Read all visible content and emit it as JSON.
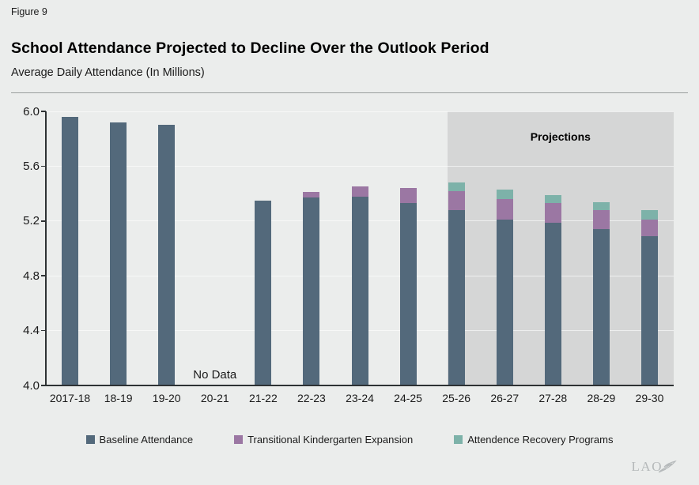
{
  "figure_label": "Figure 9",
  "title": "School Attendance Projected to Decline Over the Outlook Period",
  "subtitle": "Average Daily Attendance (In Millions)",
  "chart_data": {
    "type": "bar",
    "stacked": true,
    "title": "School Attendance Projected to Decline Over the Outlook Period",
    "subtitle": "Average Daily Attendance (In Millions)",
    "ylabel": "Average Daily Attendance (In Millions)",
    "xlabel": "",
    "ylim": [
      4.0,
      6.0
    ],
    "ytick_step": 0.4,
    "ytick_labels": [
      "6.0",
      "5.6",
      "5.2",
      "4.8",
      "4.4",
      "4.0"
    ],
    "grid": true,
    "legend_position": "bottom",
    "categories": [
      "2017-18",
      "18-19",
      "19-20",
      "20-21",
      "21-22",
      "22-23",
      "23-24",
      "24-25",
      "25-26",
      "26-27",
      "27-28",
      "28-29",
      "29-30"
    ],
    "series": [
      {
        "name": "Baseline Attendance",
        "color": "#53697b",
        "values": [
          5.96,
          5.92,
          5.9,
          null,
          5.35,
          5.37,
          5.38,
          5.33,
          5.28,
          5.21,
          5.19,
          5.14,
          5.09
        ]
      },
      {
        "name": "Transitional Kindergarten Expansion",
        "color": "#9b77a3",
        "values": [
          0,
          0,
          0,
          null,
          0,
          0.04,
          0.07,
          0.11,
          0.14,
          0.15,
          0.14,
          0.14,
          0.12
        ]
      },
      {
        "name": "Attendence Recovery Programs",
        "color": "#7db2a9",
        "values": [
          0,
          0,
          0,
          null,
          0,
          0,
          0,
          0,
          0.06,
          0.07,
          0.06,
          0.06,
          0.07
        ]
      }
    ],
    "annotations": {
      "no_data": {
        "text": "No Data",
        "category": "20-21"
      },
      "projections": {
        "text": "Projections",
        "start_category": "25-26"
      }
    }
  },
  "legend_note": "legend entries mirror chart_data.series names and colors",
  "logo": {
    "text": "LAO"
  },
  "colors": {
    "page_background": "#ebedec",
    "projection_shade": "#d5d6d6",
    "axis": "#2e3234",
    "baseline_bar": "#53697b",
    "tk_bar": "#9b77a3",
    "recovery_bar": "#7db2a9"
  }
}
